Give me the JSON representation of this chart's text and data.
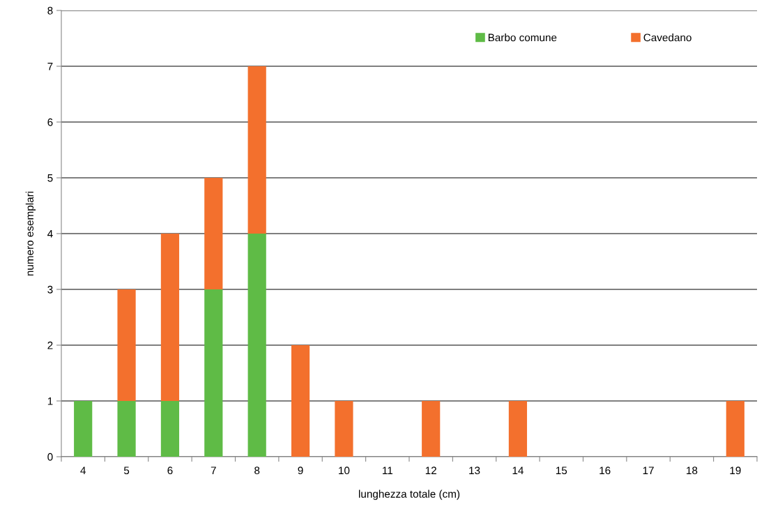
{
  "chart_data": {
    "type": "bar",
    "stacked": true,
    "xlabel": "lunghezza totale (cm)",
    "ylabel": "numero esemplari",
    "categories": [
      "4",
      "5",
      "6",
      "7",
      "8",
      "9",
      "10",
      "11",
      "12",
      "13",
      "14",
      "15",
      "16",
      "17",
      "18",
      "19"
    ],
    "series": [
      {
        "name": "Barbo comune",
        "color": "#5fbb46",
        "values": [
          1,
          1,
          1,
          3,
          4,
          0,
          0,
          0,
          0,
          0,
          0,
          0,
          0,
          0,
          0,
          0
        ]
      },
      {
        "name": "Cavedano",
        "color": "#f3702d",
        "values": [
          0,
          2,
          3,
          2,
          3,
          2,
          1,
          0,
          1,
          0,
          1,
          0,
          0,
          0,
          0,
          1
        ]
      }
    ],
    "ylim": [
      0,
      8
    ],
    "yticks": [
      0,
      1,
      2,
      3,
      4,
      5,
      6,
      7,
      8
    ],
    "grid": "y",
    "legend": "top right"
  }
}
